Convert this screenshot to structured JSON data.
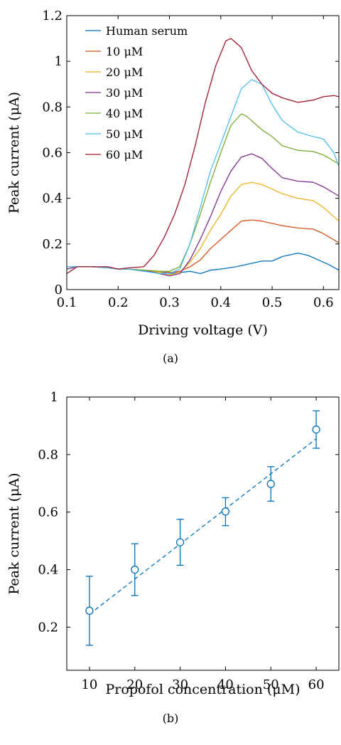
{
  "chart_data": [
    {
      "type": "line",
      "caption": "(a)",
      "xlabel": "Driving voltage (V)",
      "ylabel": "Peak current (μA)",
      "xlim": [
        0.1,
        0.63
      ],
      "ylim": [
        0,
        1.2
      ],
      "xticks": [
        0.1,
        0.2,
        0.3,
        0.4,
        0.5,
        0.6
      ],
      "xtick_labels": [
        "0.1",
        "0.2",
        "0.3",
        "0.4",
        "0.5",
        "0.6"
      ],
      "yticks": [
        0,
        0.2,
        0.4,
        0.6,
        0.8,
        1,
        1.2
      ],
      "ytick_labels": [
        "0",
        "0.2",
        "0.4",
        "0.6",
        "0.8",
        "1",
        "1.2"
      ],
      "grid": false,
      "legend_position": "top-left",
      "series": [
        {
          "name": "Human serum",
          "color": "#0072BD",
          "x": [
            0.1,
            0.12,
            0.15,
            0.18,
            0.2,
            0.22,
            0.25,
            0.28,
            0.3,
            0.32,
            0.34,
            0.36,
            0.38,
            0.4,
            0.43,
            0.46,
            0.48,
            0.5,
            0.52,
            0.55,
            0.57,
            0.59,
            0.61,
            0.63
          ],
          "y": [
            0.1,
            0.1,
            0.1,
            0.095,
            0.09,
            0.09,
            0.08,
            0.075,
            0.07,
            0.075,
            0.08,
            0.07,
            0.085,
            0.09,
            0.1,
            0.115,
            0.125,
            0.125,
            0.145,
            0.16,
            0.15,
            0.13,
            0.11,
            0.085
          ]
        },
        {
          "name": "10 μM",
          "color": "#D95319",
          "x": [
            0.1,
            0.12,
            0.15,
            0.18,
            0.2,
            0.22,
            0.25,
            0.28,
            0.3,
            0.32,
            0.34,
            0.36,
            0.38,
            0.4,
            0.42,
            0.44,
            0.46,
            0.48,
            0.5,
            0.52,
            0.55,
            0.58,
            0.6,
            0.63
          ],
          "y": [
            0.09,
            0.1,
            0.1,
            0.095,
            0.09,
            0.09,
            0.085,
            0.08,
            0.075,
            0.08,
            0.1,
            0.13,
            0.18,
            0.22,
            0.26,
            0.3,
            0.305,
            0.3,
            0.29,
            0.28,
            0.27,
            0.265,
            0.245,
            0.205
          ]
        },
        {
          "name": "20 μM",
          "color": "#EDB120",
          "x": [
            0.1,
            0.12,
            0.15,
            0.18,
            0.2,
            0.22,
            0.25,
            0.28,
            0.3,
            0.32,
            0.34,
            0.36,
            0.38,
            0.4,
            0.42,
            0.44,
            0.46,
            0.48,
            0.5,
            0.52,
            0.55,
            0.58,
            0.6,
            0.63
          ],
          "y": [
            0.09,
            0.1,
            0.1,
            0.095,
            0.09,
            0.09,
            0.085,
            0.075,
            0.065,
            0.075,
            0.12,
            0.18,
            0.26,
            0.33,
            0.41,
            0.46,
            0.47,
            0.46,
            0.44,
            0.42,
            0.4,
            0.39,
            0.36,
            0.3
          ]
        },
        {
          "name": "30 μM",
          "color": "#7E2F8E",
          "x": [
            0.1,
            0.12,
            0.15,
            0.18,
            0.2,
            0.22,
            0.25,
            0.28,
            0.3,
            0.32,
            0.34,
            0.36,
            0.38,
            0.4,
            0.42,
            0.44,
            0.46,
            0.48,
            0.5,
            0.52,
            0.55,
            0.58,
            0.6,
            0.63
          ],
          "y": [
            0.09,
            0.1,
            0.1,
            0.095,
            0.09,
            0.09,
            0.085,
            0.07,
            0.06,
            0.07,
            0.13,
            0.22,
            0.32,
            0.43,
            0.52,
            0.58,
            0.595,
            0.575,
            0.53,
            0.49,
            0.475,
            0.47,
            0.45,
            0.41
          ]
        },
        {
          "name": "40 μM",
          "color": "#77AC30",
          "x": [
            0.1,
            0.12,
            0.15,
            0.18,
            0.2,
            0.22,
            0.25,
            0.28,
            0.3,
            0.32,
            0.34,
            0.36,
            0.38,
            0.4,
            0.42,
            0.44,
            0.45,
            0.46,
            0.48,
            0.5,
            0.52,
            0.55,
            0.58,
            0.6,
            0.63
          ],
          "y": [
            0.1,
            0.1,
            0.1,
            0.095,
            0.09,
            0.09,
            0.085,
            0.08,
            0.08,
            0.1,
            0.2,
            0.33,
            0.47,
            0.6,
            0.72,
            0.77,
            0.76,
            0.74,
            0.7,
            0.67,
            0.63,
            0.61,
            0.605,
            0.59,
            0.55
          ]
        },
        {
          "name": "50 μM",
          "color": "#4DBEEE",
          "x": [
            0.1,
            0.12,
            0.15,
            0.18,
            0.2,
            0.22,
            0.25,
            0.28,
            0.3,
            0.32,
            0.34,
            0.36,
            0.38,
            0.4,
            0.42,
            0.44,
            0.46,
            0.48,
            0.5,
            0.52,
            0.55,
            0.58,
            0.6,
            0.62,
            0.63
          ],
          "y": [
            0.1,
            0.1,
            0.1,
            0.095,
            0.09,
            0.09,
            0.08,
            0.07,
            0.07,
            0.09,
            0.2,
            0.36,
            0.52,
            0.64,
            0.76,
            0.88,
            0.92,
            0.9,
            0.81,
            0.74,
            0.69,
            0.67,
            0.66,
            0.6,
            0.54
          ]
        },
        {
          "name": "60 μM",
          "color": "#A2142F",
          "x": [
            0.1,
            0.12,
            0.15,
            0.18,
            0.2,
            0.22,
            0.25,
            0.27,
            0.29,
            0.31,
            0.33,
            0.35,
            0.37,
            0.39,
            0.41,
            0.42,
            0.44,
            0.46,
            0.48,
            0.5,
            0.52,
            0.55,
            0.58,
            0.6,
            0.62,
            0.63
          ],
          "y": [
            0.07,
            0.1,
            0.1,
            0.1,
            0.09,
            0.095,
            0.1,
            0.15,
            0.23,
            0.33,
            0.46,
            0.63,
            0.82,
            0.98,
            1.09,
            1.1,
            1.06,
            0.96,
            0.9,
            0.86,
            0.84,
            0.82,
            0.83,
            0.845,
            0.85,
            0.845
          ]
        }
      ]
    },
    {
      "type": "scatter",
      "caption": "(b)",
      "xlabel": "Propofol concentration (μM)",
      "ylabel": "Peak current (μA)",
      "xlim": [
        5,
        65
      ],
      "ylim": [
        0.05,
        1
      ],
      "xticks": [
        10,
        20,
        30,
        40,
        50,
        60
      ],
      "xtick_labels": [
        "10",
        "20",
        "30",
        "40",
        "50",
        "60"
      ],
      "yticks": [
        0.2,
        0.4,
        0.6,
        0.8,
        1
      ],
      "ytick_labels": [
        "0.2",
        "0.4",
        "0.6",
        "0.8",
        "1"
      ],
      "grid": false,
      "color": "#0072BD",
      "x": [
        10,
        20,
        30,
        40,
        50,
        60
      ],
      "y": [
        0.257,
        0.4,
        0.495,
        0.602,
        0.698,
        0.887
      ],
      "y_err_low": [
        0.137,
        0.31,
        0.415,
        0.553,
        0.638,
        0.822
      ],
      "y_err_high": [
        0.377,
        0.49,
        0.575,
        0.65,
        0.758,
        0.952
      ],
      "fit_line": {
        "style": "dashed",
        "x": [
          10,
          60
        ],
        "y": [
          0.245,
          0.855
        ]
      }
    }
  ]
}
